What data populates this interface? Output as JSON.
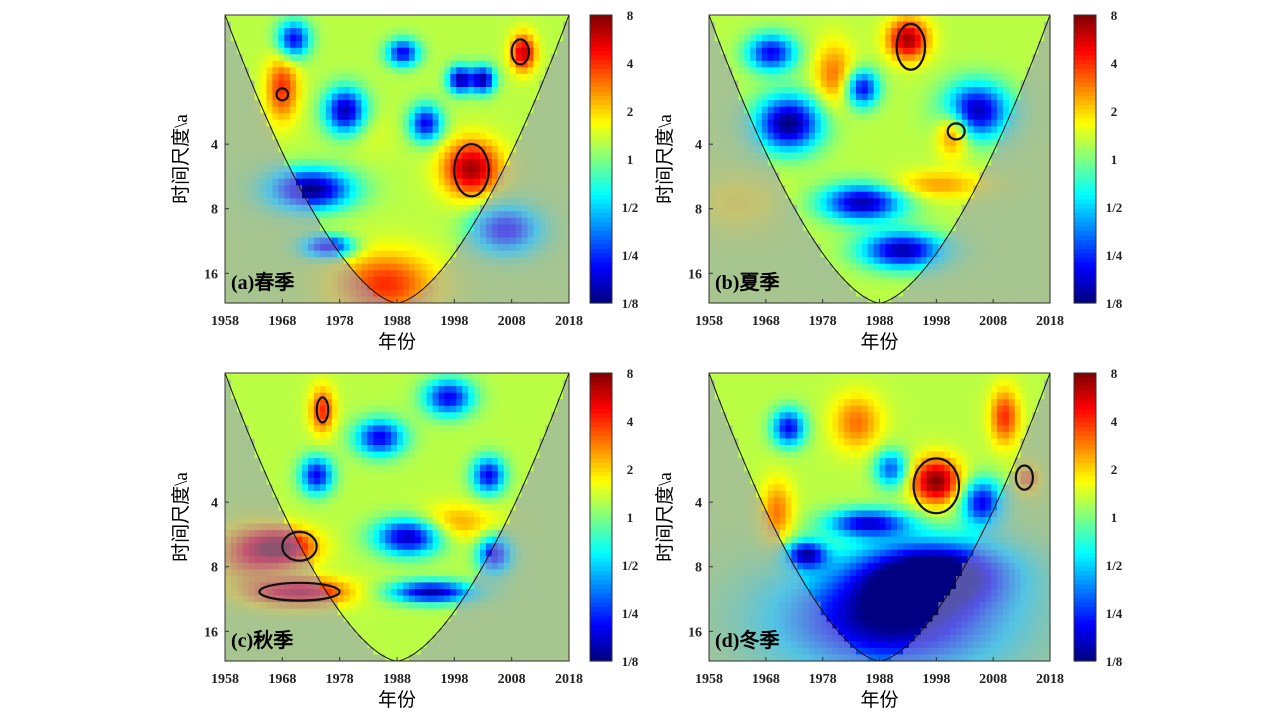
{
  "chart_data": [
    {
      "type": "heatmap",
      "title": "(a)春季",
      "xlabel": "年份",
      "ylabel": "时间尺度\\a",
      "xlim": [
        1958,
        2018
      ],
      "x_ticks": [
        "1958",
        "1968",
        "1978",
        "1988",
        "1998",
        "2008",
        "2018"
      ],
      "y_scale": "log2",
      "ylim": [
        1,
        22
      ],
      "y_ticks": [
        "4",
        "8",
        "16"
      ],
      "colorbar": {
        "scale": "log2",
        "range": [
          0.125,
          8
        ],
        "ticks": [
          "8",
          "4",
          "2",
          "1",
          "1/2",
          "1/4",
          "1/8"
        ]
      },
      "significant_regions": [
        {
          "x": [
            1998,
            2004
          ],
          "y": [
            4,
            7
          ]
        },
        {
          "x": [
            2008,
            2011
          ],
          "y": [
            1.3,
            1.7
          ]
        },
        {
          "x": [
            1967,
            1969
          ],
          "y": [
            2.2,
            2.5
          ]
        }
      ],
      "blobs": [
        {
          "x": 1973,
          "y": 6.5,
          "v": 0.125,
          "sx": 5,
          "sy": 0.22
        },
        {
          "x": 1979,
          "y": 2.8,
          "v": 0.15,
          "sx": 2.5,
          "sy": 0.25
        },
        {
          "x": 1970,
          "y": 1.3,
          "v": 0.2,
          "sx": 2,
          "sy": 0.2
        },
        {
          "x": 1976,
          "y": 12,
          "v": 0.18,
          "sx": 3,
          "sy": 0.12
        },
        {
          "x": 1993,
          "y": 3.2,
          "v": 0.2,
          "sx": 2,
          "sy": 0.2
        },
        {
          "x": 1989,
          "y": 1.5,
          "v": 0.2,
          "sx": 2,
          "sy": 0.15
        },
        {
          "x": 1999,
          "y": 2.0,
          "v": 0.15,
          "sx": 1.5,
          "sy": 0.15
        },
        {
          "x": 2003,
          "y": 2.0,
          "v": 0.15,
          "sx": 1.5,
          "sy": 0.15
        },
        {
          "x": 2007,
          "y": 10,
          "v": 0.2,
          "sx": 4,
          "sy": 0.25
        },
        {
          "x": 1986,
          "y": 18,
          "v": 4,
          "sx": 6,
          "sy": 0.35
        },
        {
          "x": 2001,
          "y": 5.2,
          "v": 7,
          "sx": 3.5,
          "sy": 0.3
        },
        {
          "x": 1968,
          "y": 2.2,
          "v": 4,
          "sx": 2,
          "sy": 0.35
        },
        {
          "x": 2010,
          "y": 1.5,
          "v": 6,
          "sx": 1.5,
          "sy": 0.2
        },
        {
          "x": 1983,
          "y": 3.5,
          "v": 1.5,
          "sx": 3,
          "sy": 0.25
        }
      ]
    },
    {
      "type": "heatmap",
      "title": "(b)夏季",
      "xlabel": "年份",
      "ylabel": "时间尺度\\a",
      "xlim": [
        1958,
        2018
      ],
      "x_ticks": [
        "1958",
        "1968",
        "1978",
        "1988",
        "1998",
        "2008",
        "2018"
      ],
      "y_scale": "log2",
      "ylim": [
        1,
        22
      ],
      "y_ticks": [
        "4",
        "8",
        "16"
      ],
      "colorbar": {
        "scale": "log2",
        "range": [
          0.125,
          8
        ],
        "ticks": [
          "8",
          "4",
          "2",
          "1",
          "1/2",
          "1/4",
          "1/8"
        ]
      },
      "significant_regions": [
        {
          "x": [
            1991,
            1996
          ],
          "y": [
            1.1,
            1.8
          ]
        },
        {
          "x": [
            2000,
            2003
          ],
          "y": [
            3.2,
            3.8
          ]
        }
      ],
      "blobs": [
        {
          "x": 1972,
          "y": 3.2,
          "v": 0.125,
          "sx": 4,
          "sy": 0.3
        },
        {
          "x": 1985,
          "y": 7.5,
          "v": 0.15,
          "sx": 5,
          "sy": 0.2
        },
        {
          "x": 1992,
          "y": 12.5,
          "v": 0.15,
          "sx": 5,
          "sy": 0.2
        },
        {
          "x": 1969,
          "y": 1.5,
          "v": 0.2,
          "sx": 3,
          "sy": 0.2
        },
        {
          "x": 2005,
          "y": 2.8,
          "v": 0.15,
          "sx": 4,
          "sy": 0.3
        },
        {
          "x": 1985,
          "y": 2.2,
          "v": 0.2,
          "sx": 2,
          "sy": 0.2
        },
        {
          "x": 1993,
          "y": 1.3,
          "v": 7,
          "sx": 2.5,
          "sy": 0.22
        },
        {
          "x": 1980,
          "y": 1.9,
          "v": 3,
          "sx": 2.5,
          "sy": 0.35
        },
        {
          "x": 2001,
          "y": 3.5,
          "v": 4,
          "sx": 2,
          "sy": 0.25
        },
        {
          "x": 1998,
          "y": 6.2,
          "v": 2.5,
          "sx": 6,
          "sy": 0.15
        },
        {
          "x": 1963,
          "y": 7.5,
          "v": 1.8,
          "sx": 5,
          "sy": 0.3
        }
      ]
    },
    {
      "type": "heatmap",
      "title": "(c)秋季",
      "xlabel": "年份",
      "ylabel": "时间尺度\\a",
      "xlim": [
        1958,
        2018
      ],
      "x_ticks": [
        "1958",
        "1968",
        "1978",
        "1988",
        "1998",
        "2008",
        "2018"
      ],
      "y_scale": "log2",
      "ylim": [
        1,
        22
      ],
      "y_ticks": [
        "4",
        "8",
        "16"
      ],
      "colorbar": {
        "scale": "log2",
        "range": [
          0.125,
          8
        ],
        "ticks": [
          "8",
          "4",
          "2",
          "1",
          "1/2",
          "1/4",
          "1/8"
        ]
      },
      "significant_regions": [
        {
          "x": [
            1968,
            1974
          ],
          "y": [
            5.5,
            7.5
          ]
        },
        {
          "x": [
            1964,
            1978
          ],
          "y": [
            9.5,
            11.5
          ]
        },
        {
          "x": [
            1974,
            1976
          ],
          "y": [
            1.3,
            1.7
          ]
        }
      ],
      "blobs": [
        {
          "x": 1968,
          "y": 6.5,
          "v": 7,
          "sx": 4,
          "sy": 0.2
        },
        {
          "x": 1971,
          "y": 10.5,
          "v": 6,
          "sx": 6,
          "sy": 0.15
        },
        {
          "x": 1962,
          "y": 7,
          "v": 3,
          "sx": 4,
          "sy": 0.3
        },
        {
          "x": 1975,
          "y": 1.5,
          "v": 4,
          "sx": 1.5,
          "sy": 0.25
        },
        {
          "x": 1990,
          "y": 5.8,
          "v": 0.15,
          "sx": 4,
          "sy": 0.2
        },
        {
          "x": 1994,
          "y": 10.5,
          "v": 0.15,
          "sx": 5,
          "sy": 0.12
        },
        {
          "x": 1985,
          "y": 2.0,
          "v": 0.2,
          "sx": 3,
          "sy": 0.2
        },
        {
          "x": 1997,
          "y": 1.3,
          "v": 0.2,
          "sx": 3,
          "sy": 0.2
        },
        {
          "x": 2005,
          "y": 7.0,
          "v": 0.2,
          "sx": 2,
          "sy": 0.2
        },
        {
          "x": 2004,
          "y": 3.0,
          "v": 0.2,
          "sx": 2,
          "sy": 0.2
        },
        {
          "x": 1974,
          "y": 3.0,
          "v": 0.2,
          "sx": 2,
          "sy": 0.2
        },
        {
          "x": 1998,
          "y": 5.0,
          "v": 2.5,
          "sx": 5,
          "sy": 0.2
        }
      ]
    },
    {
      "type": "heatmap",
      "title": "(d)冬季",
      "xlabel": "年份",
      "ylabel": "时间尺度\\a",
      "xlim": [
        1958,
        2018
      ],
      "x_ticks": [
        "1958",
        "1968",
        "1978",
        "1988",
        "1998",
        "2008",
        "2018"
      ],
      "y_scale": "log2",
      "ylim": [
        1,
        22
      ],
      "y_ticks": [
        "4",
        "8",
        "16"
      ],
      "colorbar": {
        "scale": "log2",
        "range": [
          0.125,
          8
        ],
        "ticks": [
          "8",
          "4",
          "2",
          "1",
          "1/2",
          "1/4",
          "1/8"
        ]
      },
      "significant_regions": [
        {
          "x": [
            1994,
            2002
          ],
          "y": [
            2.5,
            4.5
          ]
        },
        {
          "x": [
            2012,
            2015
          ],
          "y": [
            2.7,
            3.5
          ]
        }
      ],
      "blobs": [
        {
          "x": 1998,
          "y": 3.2,
          "v": 8,
          "sx": 3,
          "sy": 0.25
        },
        {
          "x": 2010,
          "y": 1.6,
          "v": 4,
          "sx": 1.8,
          "sy": 0.3
        },
        {
          "x": 2014,
          "y": 3.1,
          "v": 3,
          "sx": 1.5,
          "sy": 0.15
        },
        {
          "x": 1984,
          "y": 1.7,
          "v": 3,
          "sx": 3,
          "sy": 0.3
        },
        {
          "x": 1970,
          "y": 4.5,
          "v": 3,
          "sx": 2,
          "sy": 0.35
        },
        {
          "x": 1990,
          "y": 14,
          "v": 0.125,
          "sx": 14,
          "sy": 0.6
        },
        {
          "x": 1998,
          "y": 8.5,
          "v": 0.15,
          "sx": 9,
          "sy": 0.35
        },
        {
          "x": 1986,
          "y": 5.0,
          "v": 0.2,
          "sx": 5,
          "sy": 0.15
        },
        {
          "x": 1972,
          "y": 1.8,
          "v": 0.2,
          "sx": 2,
          "sy": 0.2
        },
        {
          "x": 1975,
          "y": 7.0,
          "v": 0.2,
          "sx": 2.5,
          "sy": 0.15
        },
        {
          "x": 2006,
          "y": 4.0,
          "v": 0.2,
          "sx": 2.5,
          "sy": 0.25
        },
        {
          "x": 1990,
          "y": 2.8,
          "v": 0.3,
          "sx": 2,
          "sy": 0.2
        }
      ]
    }
  ]
}
